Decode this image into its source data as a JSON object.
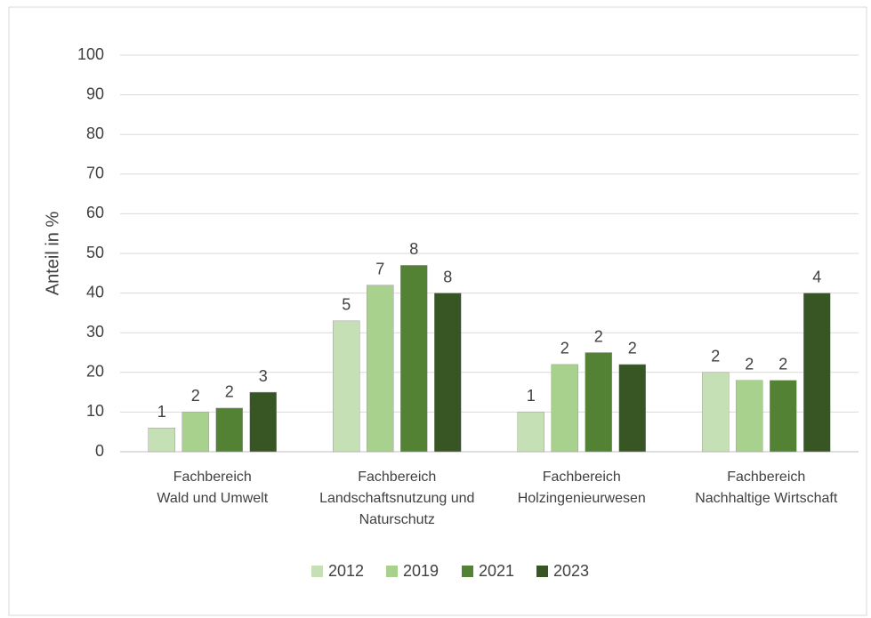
{
  "chart_data": {
    "type": "bar",
    "ylabel": "Anteil in %",
    "categories": [
      [
        "Fachbereich",
        "Wald und Umwelt"
      ],
      [
        "Fachbereich",
        "Landschaftsnutzung und",
        "Naturschutz"
      ],
      [
        "Fachbereich",
        "Holzingenieurwesen"
      ],
      [
        "Fachbereich",
        "Nachhaltige Wirtschaft"
      ]
    ],
    "series": [
      {
        "name": "2012",
        "color": "#c5e0b4",
        "values": [
          6,
          33,
          10,
          20
        ],
        "data_labels": [
          1,
          5,
          1,
          2
        ]
      },
      {
        "name": "2019",
        "color": "#a9d18e",
        "values": [
          10,
          42,
          22,
          18
        ],
        "data_labels": [
          2,
          7,
          2,
          2
        ]
      },
      {
        "name": "2021",
        "color": "#548235",
        "values": [
          11,
          47,
          25,
          18
        ],
        "data_labels": [
          2,
          8,
          2,
          2
        ]
      },
      {
        "name": "2023",
        "color": "#375623",
        "values": [
          15,
          40,
          22,
          40
        ],
        "data_labels": [
          3,
          8,
          2,
          4
        ]
      }
    ],
    "ylim": [
      0,
      100
    ],
    "yticks": [
      0,
      10,
      20,
      30,
      40,
      50,
      60,
      70,
      80,
      90,
      100
    ],
    "grid": true,
    "legend": "bottom"
  }
}
